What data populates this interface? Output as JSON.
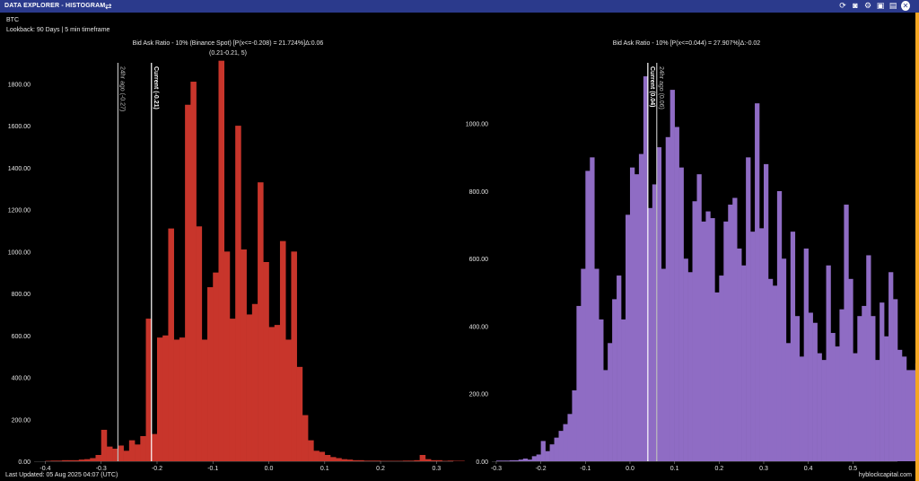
{
  "window": {
    "title": "DATA EXPLORER - HISTOGRAM",
    "toolbar_icons": [
      "refresh-icon",
      "camera-icon",
      "settings-icon",
      "save-icon",
      "save-copy-icon",
      "close-icon"
    ]
  },
  "info": {
    "asset": "BTC",
    "lookback": "Lookback: 90 Days | 5 min timeframe"
  },
  "footer": {
    "last_updated": "Last Updated: 05 Aug 2025 04:07 (UTC)",
    "brand": "hyblockcapital.com"
  },
  "colors": {
    "titlebar": "#2b3a8c",
    "left_bars": "#c8352b",
    "right_bars": "#8f6cc4",
    "accent_strip": "#f5a623",
    "background": "#000000"
  },
  "chart_data": [
    {
      "type": "bar",
      "title": "Bid Ask Ratio - 10% (Binance Spot) [P(x<=-0.208) = 21.724%]Δ:0.06",
      "subtitle": "(0.21-0.21, 5)",
      "xlim": [
        -0.42,
        0.33
      ],
      "ylim": [
        0,
        1900
      ],
      "xticks": [
        -0.4,
        -0.3,
        -0.2,
        -0.1,
        0.0,
        0.1,
        0.2,
        0.3
      ],
      "xtick_labels": [
        "-0.4",
        "-0.3",
        "-0.2",
        "-0.1",
        "0.0",
        "0.1",
        "0.2",
        "0.3"
      ],
      "yticks": [
        0,
        200,
        400,
        600,
        800,
        1000,
        1200,
        1400,
        1600,
        1800
      ],
      "ytick_labels": [
        "0.00",
        "200.00",
        "400.00",
        "600.00",
        "800.00",
        "1000.00",
        "1200.00",
        "1400.00",
        "1600.00",
        "1800.00"
      ],
      "bin_start": -0.4,
      "bin_width": 0.01,
      "values": [
        2,
        3,
        3,
        5,
        5,
        5,
        8,
        10,
        15,
        30,
        150,
        70,
        60,
        75,
        50,
        100,
        80,
        120,
        680,
        130,
        590,
        600,
        1110,
        580,
        590,
        1700,
        1810,
        1120,
        580,
        830,
        900,
        1910,
        1000,
        680,
        1600,
        1010,
        700,
        750,
        1330,
        950,
        640,
        650,
        1050,
        580,
        1000,
        450,
        220,
        100,
        50,
        45,
        30,
        20,
        15,
        10,
        8,
        5,
        5,
        3,
        3,
        3,
        2,
        2,
        2,
        2,
        3,
        3,
        5,
        30,
        10,
        5,
        5,
        2,
        3,
        2,
        2
      ],
      "markers": [
        {
          "label": "24hr ago (-0.27)",
          "x": -0.27,
          "color": "#bdbdbd"
        },
        {
          "label": "Current (-0.21)",
          "x": -0.21,
          "color": "#ffffff"
        }
      ]
    },
    {
      "type": "bar",
      "title": "Bid Ask Ratio - 10% [P(x<=0.044) = 27.907%]Δ:-0.02",
      "subtitle": "",
      "xlim": [
        -0.31,
        0.6
      ],
      "ylim": [
        0,
        1180
      ],
      "xticks": [
        -0.3,
        -0.2,
        -0.1,
        0.0,
        0.1,
        0.2,
        0.3,
        0.4,
        0.5
      ],
      "xtick_labels": [
        "-0.3",
        "-0.2",
        "-0.1",
        "0.0",
        "0.1",
        "0.2",
        "0.3",
        "0.4",
        "0.5"
      ],
      "yticks": [
        0,
        200,
        400,
        600,
        800,
        1000
      ],
      "ytick_labels": [
        "0.00",
        "200.00",
        "400.00",
        "600.00",
        "800.00",
        "1000.00"
      ],
      "bin_start": -0.3,
      "bin_width": 0.01,
      "values": [
        2,
        2,
        2,
        3,
        3,
        5,
        8,
        5,
        15,
        20,
        60,
        30,
        50,
        70,
        90,
        110,
        140,
        210,
        460,
        570,
        860,
        900,
        570,
        420,
        270,
        350,
        480,
        550,
        420,
        730,
        870,
        850,
        910,
        1140,
        750,
        820,
        930,
        570,
        960,
        1100,
        990,
        870,
        600,
        560,
        770,
        850,
        710,
        740,
        720,
        500,
        550,
        710,
        760,
        780,
        630,
        580,
        900,
        680,
        1060,
        690,
        880,
        540,
        520,
        800,
        600,
        350,
        680,
        430,
        310,
        630,
        440,
        410,
        320,
        300,
        580,
        380,
        340,
        450,
        760,
        540,
        320,
        430,
        460,
        610,
        430,
        300,
        470,
        370,
        560,
        480,
        330,
        310,
        270,
        270,
        290,
        340,
        320,
        180,
        130,
        70,
        60,
        80,
        180,
        190,
        100,
        80,
        50,
        130,
        150,
        180,
        200,
        190,
        160,
        150,
        120,
        100,
        80,
        70,
        60,
        50,
        40,
        30,
        20,
        20,
        10,
        8,
        5,
        5,
        3,
        3,
        2,
        2,
        2,
        2,
        2,
        2,
        2
      ],
      "markers": [
        {
          "label": "Current (0.04)",
          "x": 0.04,
          "color": "#ffffff"
        },
        {
          "label": "24hr ago (0.06)",
          "x": 0.06,
          "color": "#bdbdbd"
        }
      ]
    }
  ]
}
